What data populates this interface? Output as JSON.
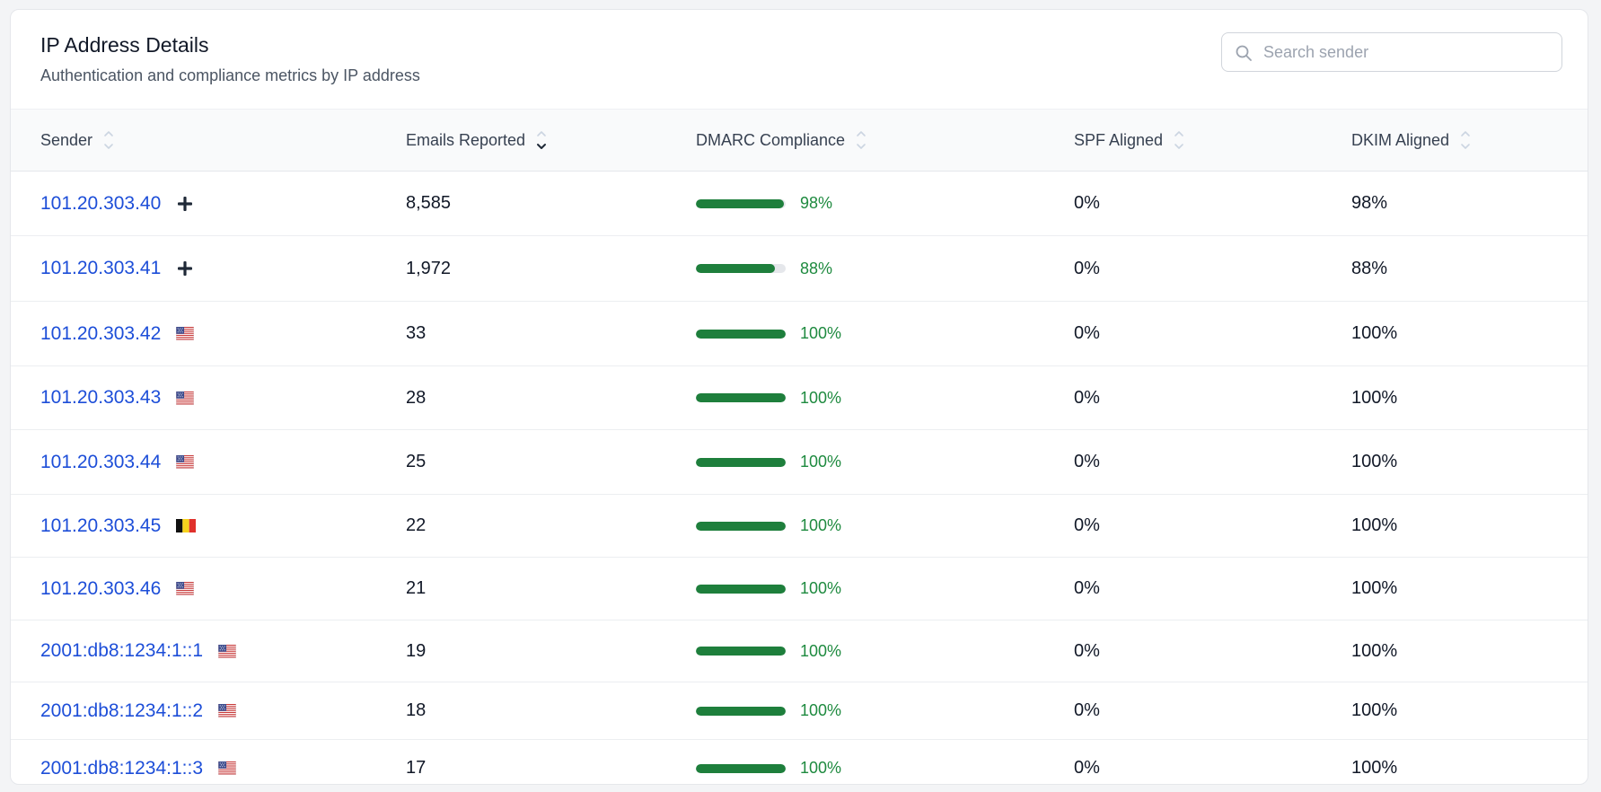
{
  "header": {
    "title": "IP Address Details",
    "subtitle": "Authentication and compliance metrics by IP address"
  },
  "search": {
    "placeholder": "Search sender",
    "value": ""
  },
  "columns": [
    {
      "label": "Sender",
      "sort": "none"
    },
    {
      "label": "Emails Reported",
      "sort": "desc"
    },
    {
      "label": "DMARC Compliance",
      "sort": "none"
    },
    {
      "label": "SPF Aligned",
      "sort": "none"
    },
    {
      "label": "DKIM Aligned",
      "sort": "none"
    }
  ],
  "colors": {
    "link": "#1d4ed8",
    "compliance_bar": "#1e7f3c",
    "compliance_text": "#1e8a3f",
    "bar_track": "#e5e7eb"
  },
  "rows": [
    {
      "sender": "101.20.303.40",
      "flag": "plus-icon",
      "emails": "8,585",
      "dmarc": 0.98,
      "dmarc_label": "98%",
      "spf": "0%",
      "dkim": "98%"
    },
    {
      "sender": "101.20.303.41",
      "flag": "plus-icon",
      "emails": "1,972",
      "dmarc": 0.88,
      "dmarc_label": "88%",
      "spf": "0%",
      "dkim": "88%"
    },
    {
      "sender": "101.20.303.42",
      "flag": "us-flag-icon",
      "emails": "33",
      "dmarc": 1.0,
      "dmarc_label": "100%",
      "spf": "0%",
      "dkim": "100%"
    },
    {
      "sender": "101.20.303.43",
      "flag": "us-flag-icon",
      "emails": "28",
      "dmarc": 1.0,
      "dmarc_label": "100%",
      "spf": "0%",
      "dkim": "100%"
    },
    {
      "sender": "101.20.303.44",
      "flag": "us-flag-icon",
      "emails": "25",
      "dmarc": 1.0,
      "dmarc_label": "100%",
      "spf": "0%",
      "dkim": "100%"
    },
    {
      "sender": "101.20.303.45",
      "flag": "be-flag-icon",
      "emails": "22",
      "dmarc": 1.0,
      "dmarc_label": "100%",
      "spf": "0%",
      "dkim": "100%"
    },
    {
      "sender": "101.20.303.46",
      "flag": "us-flag-icon",
      "emails": "21",
      "dmarc": 1.0,
      "dmarc_label": "100%",
      "spf": "0%",
      "dkim": "100%"
    },
    {
      "sender": "2001:db8:1234:1::1",
      "flag": "us-flag-icon",
      "emails": "19",
      "dmarc": 1.0,
      "dmarc_label": "100%",
      "spf": "0%",
      "dkim": "100%"
    },
    {
      "sender": "2001:db8:1234:1::2",
      "flag": "us-flag-icon",
      "emails": "18",
      "dmarc": 1.0,
      "dmarc_label": "100%",
      "spf": "0%",
      "dkim": "100%"
    },
    {
      "sender": "2001:db8:1234:1::3",
      "flag": "us-flag-icon",
      "emails": "17",
      "dmarc": 1.0,
      "dmarc_label": "100%",
      "spf": "0%",
      "dkim": "100%"
    }
  ]
}
